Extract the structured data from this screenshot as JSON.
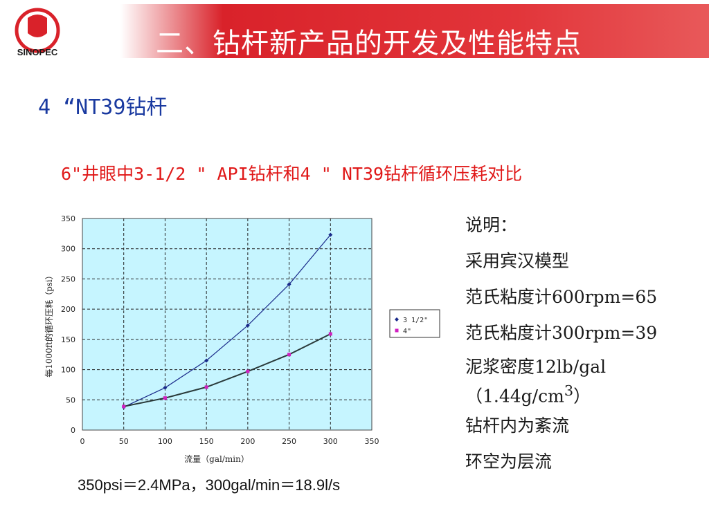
{
  "header": {
    "title": "二、钻杆新产品的开发及性能特点",
    "logo_text": "SINOPEC",
    "banner_color": "#d9222a"
  },
  "subtitle": "4 “NT39钻杆",
  "chart_data": {
    "type": "line",
    "title": "6\"井眼中3-1/2 \" API钻杆和4 \" NT39钻杆循环压耗对比",
    "xlabel": "流量（gal/min）",
    "ylabel": "每1000ft的循环压耗（psi）",
    "xlim": [
      0,
      350
    ],
    "ylim": [
      0,
      350
    ],
    "xticks": [
      0,
      50,
      100,
      150,
      200,
      250,
      300,
      350
    ],
    "yticks": [
      0,
      50,
      100,
      150,
      200,
      250,
      300,
      350
    ],
    "grid": true,
    "background": "#c6f5ff",
    "legend_position": "right",
    "series": [
      {
        "name": "3 1/2\"",
        "color": "#1a2a8a",
        "marker": "diamond",
        "x": [
          50,
          100,
          150,
          200,
          250,
          300
        ],
        "y": [
          38,
          70,
          115,
          173,
          241,
          323
        ]
      },
      {
        "name": "4\"",
        "color": "#d020c0",
        "marker": "square",
        "x": [
          50,
          100,
          150,
          200,
          250,
          300
        ],
        "y": [
          39,
          53,
          71,
          97,
          125,
          159
        ]
      }
    ]
  },
  "notes": {
    "heading": "说明：",
    "model": "采用宾汉模型",
    "fann600": "范氏粘度计600rpm=65",
    "fann300": "范氏粘度计300rpm=39",
    "density_line1": "泥浆密度12lb/gal",
    "density_line2_prefix": "（1.44g/cm",
    "density_sup": "3",
    "density_line2_suffix": "）",
    "flow_inside": "钻杆内为紊流",
    "flow_annulus": "环空为层流"
  },
  "conversion": "350psi＝2.4MPa，300gal/min＝18.9l/s"
}
